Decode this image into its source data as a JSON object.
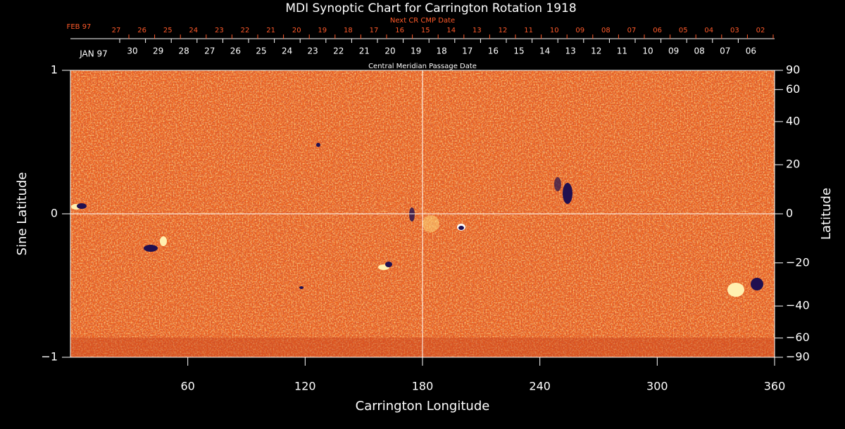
{
  "chart_data": {
    "type": "synoptic-map",
    "title": "MDI Synoptic Chart for Carrington Rotation 1918",
    "xlabel": "Carrington Longitude",
    "ylabel": "Sine Latitude",
    "y2label": "Latitude",
    "xlim": [
      0,
      360
    ],
    "xticks": [
      60,
      120,
      180,
      240,
      300,
      360
    ],
    "ylim": [
      -1,
      1
    ],
    "yticks": [
      {
        "value": -1,
        "label": "−1"
      },
      0,
      1
    ],
    "y2lim": [
      -90,
      90
    ],
    "y2scale": "sine",
    "y2ticks": [
      90,
      60,
      40,
      20,
      0,
      {
        "value": -20,
        "label": "−20"
      },
      {
        "value": -40,
        "label": "−40"
      },
      {
        "value": -60,
        "label": "−60"
      },
      {
        "value": -90,
        "label": "−90"
      }
    ],
    "center_lines": true,
    "next_cr_axis": {
      "title": "Next CR CMP Date",
      "month": "FEB 97",
      "color": "#ff5a2a",
      "labels": [
        "27",
        "26",
        "25",
        "24",
        "23",
        "22",
        "21",
        "20",
        "19",
        "18",
        "17",
        "16",
        "15",
        "14",
        "13",
        "12",
        "11",
        "10",
        "09",
        "08",
        "07",
        "06",
        "05",
        "04",
        "03",
        "02"
      ]
    },
    "cmp_axis": {
      "title": "Central Meridian Passage Date",
      "month": "JAN 97",
      "color": "#ffffff",
      "labels": [
        "30",
        "29",
        "28",
        "27",
        "26",
        "25",
        "24",
        "23",
        "22",
        "21",
        "20",
        "19",
        "18",
        "17",
        "16",
        "15",
        "14",
        "13",
        "12",
        "11",
        "10",
        "09",
        "08",
        "07",
        "06"
      ]
    }
  }
}
